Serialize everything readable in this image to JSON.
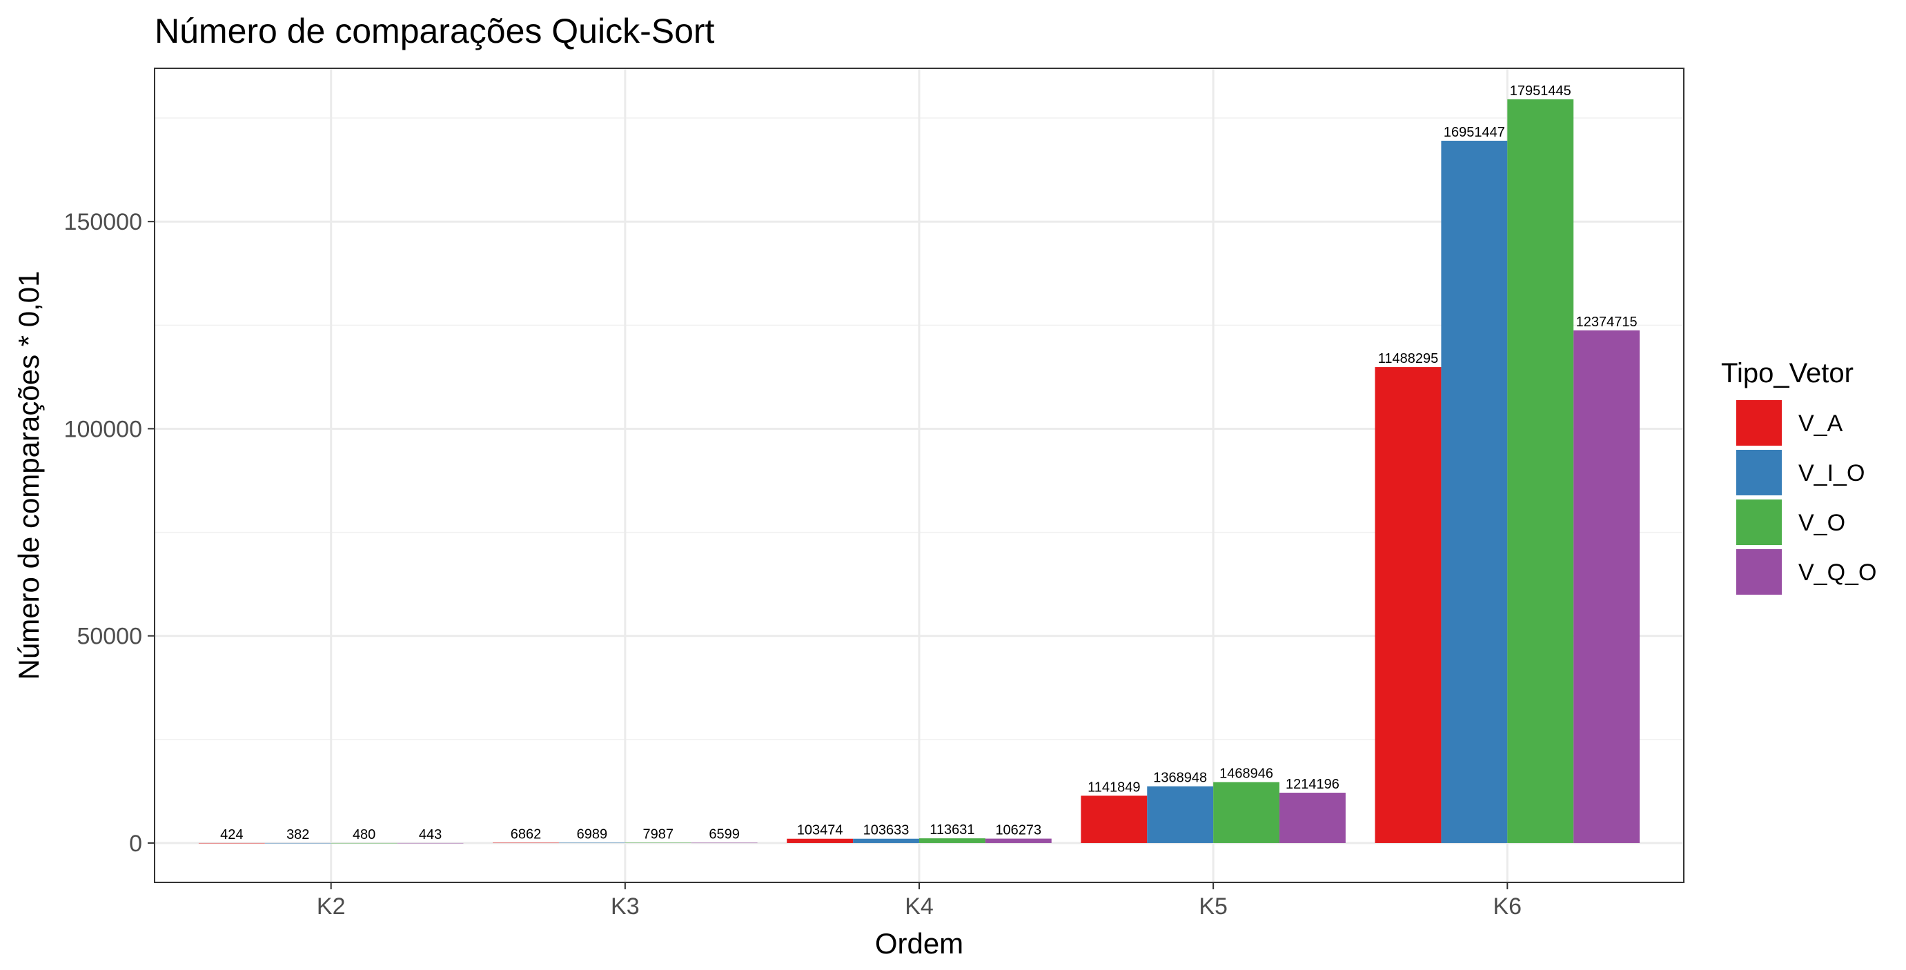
{
  "chart_data": {
    "type": "bar",
    "title": "Número de comparações Quick-Sort",
    "xlabel": "Ordem",
    "ylabel": "Número de comparações * 0,01",
    "categories": [
      "K2",
      "K3",
      "K4",
      "K5",
      "K6"
    ],
    "ylim": [
      -9500,
      187000
    ],
    "yticks": [
      0,
      50000,
      100000,
      150000
    ],
    "ytick_labels": [
      "0",
      "50000",
      "100000",
      "150000"
    ],
    "grid": true,
    "legend": {
      "title": "Tipo_Vetor",
      "position": "right"
    },
    "series": [
      {
        "name": "V_A",
        "color": "#E41A1C",
        "values": [
          4.24,
          68.62,
          1034.74,
          11418.49,
          114882.95
        ],
        "labels": [
          "424",
          "6862",
          "103474",
          "1141849",
          "11488295"
        ]
      },
      {
        "name": "V_I_O",
        "color": "#377EB8",
        "values": [
          3.82,
          69.89,
          1036.33,
          13689.48,
          169514.47
        ],
        "labels": [
          "382",
          "6989",
          "103633",
          "1368948",
          "16951447"
        ]
      },
      {
        "name": "V_O",
        "color": "#4DAF4A",
        "values": [
          4.8,
          79.87,
          1136.31,
          14689.46,
          179514.45
        ],
        "labels": [
          "480",
          "7987",
          "113631",
          "1468946",
          "17951445"
        ]
      },
      {
        "name": "V_Q_O",
        "color": "#984EA3",
        "values": [
          4.43,
          65.99,
          1062.73,
          12141.96,
          123747.15
        ],
        "labels": [
          "443",
          "6599",
          "106273",
          "1214196",
          "12374715"
        ]
      }
    ]
  }
}
